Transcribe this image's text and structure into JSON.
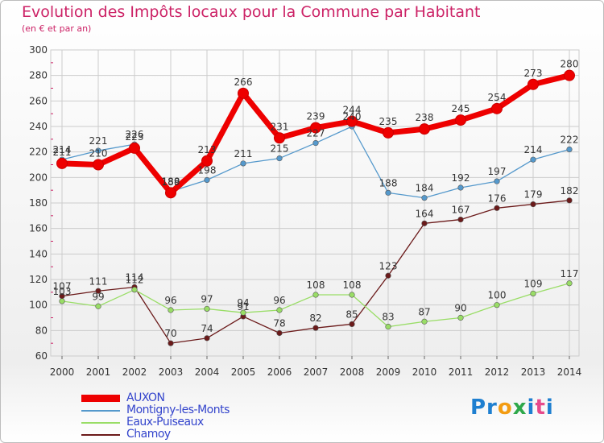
{
  "chart_data": {
    "type": "line",
    "title": "Evolution des Impôts locaux pour la Commune par Habitant",
    "subtitle": "(en € et par an)",
    "x": [
      "2000",
      "2001",
      "2002",
      "2003",
      "2004",
      "2005",
      "2006",
      "2007",
      "2008",
      "2009",
      "2010",
      "2011",
      "2012",
      "2013",
      "2014"
    ],
    "ylim": [
      60,
      300
    ],
    "yticks": [
      60,
      80,
      100,
      120,
      140,
      160,
      180,
      200,
      220,
      240,
      260,
      280,
      300
    ],
    "grid": true,
    "legend_position": "bottom-left",
    "series": [
      {
        "name": "Chamoy",
        "color": "#6b1a1a",
        "values": [
          107,
          111,
          114,
          70,
          74,
          91,
          78,
          82,
          85,
          123,
          164,
          167,
          176,
          179,
          182
        ]
      },
      {
        "name": "Eaux-Puiseaux",
        "color": "#99dd66",
        "values": [
          103,
          99,
          112,
          96,
          97,
          94,
          96,
          108,
          108,
          83,
          87,
          90,
          100,
          109,
          117
        ]
      },
      {
        "name": "Montigny-les-Monts",
        "color": "#5599cc",
        "values": [
          214,
          221,
          226,
          189,
          198,
          211,
          215,
          227,
          240,
          188,
          184,
          192,
          197,
          214,
          222
        ]
      },
      {
        "name": "AUXON",
        "color": "#ee0000",
        "values": [
          211,
          210,
          223,
          188,
          213,
          266,
          231,
          239,
          244,
          235,
          238,
          245,
          254,
          273,
          280
        ]
      }
    ]
  },
  "legend": {
    "items": [
      {
        "label": "AUXON",
        "color": "#ee0000"
      },
      {
        "label": "Montigny-les-Monts",
        "color": "#5599cc"
      },
      {
        "label": "Eaux-Puiseaux",
        "color": "#99dd66"
      },
      {
        "label": "Chamoy",
        "color": "#6b1a1a"
      }
    ]
  },
  "logo": {
    "part1": "Pr",
    "part2": "o",
    "part3": "x",
    "part4": "i",
    "part5": "t",
    "part6": "i"
  }
}
